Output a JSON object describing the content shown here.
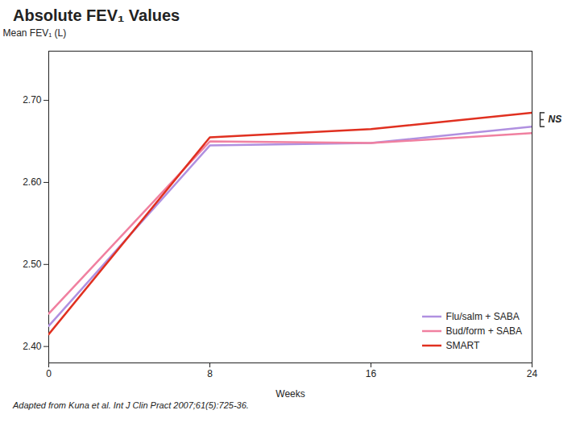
{
  "chart_data": {
    "type": "line",
    "title": "Absolute FEV₁ Values",
    "xlabel": "Weeks",
    "ylabel": "Mean FEV₁ (L)",
    "x": [
      0,
      8,
      16,
      24
    ],
    "series": [
      {
        "name": "Flu/salm + SABA",
        "color": "#b090e0",
        "values": [
          2.425,
          2.645,
          2.648,
          2.668
        ]
      },
      {
        "name": "Bud/form + SABA",
        "color": "#f080a0",
        "values": [
          2.44,
          2.65,
          2.648,
          2.66
        ]
      },
      {
        "name": "SMART",
        "color": "#e03020",
        "values": [
          2.415,
          2.655,
          2.665,
          2.685
        ]
      }
    ],
    "xlim": [
      0,
      24
    ],
    "xticks": [
      0,
      8,
      16,
      24
    ],
    "ylim": [
      2.38,
      2.76
    ],
    "yticks": [
      {
        "value": 2.4,
        "label": "2.40"
      },
      {
        "value": 2.5,
        "label": "2.50"
      },
      {
        "value": 2.6,
        "label": "2.60"
      },
      {
        "value": 2.7,
        "label": "2.70"
      }
    ],
    "grid": false,
    "legend": "lower right",
    "annotations": [
      {
        "text": "NS",
        "y_top": 2.685,
        "y_bottom": 2.668
      }
    ],
    "footnote": "Adapted from Kuna et al. Int J Clin Pract 2007;61(5):725-36."
  }
}
